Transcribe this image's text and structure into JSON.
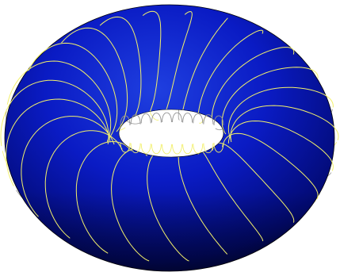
{
  "figure": {
    "subject": "torus",
    "colors": {
      "background": "#ffffff",
      "surface_light": "#1f3fe0",
      "surface_mid": "#0a1bc4",
      "surface_dark": "#020a72",
      "surface_shadow": "#000636",
      "field_line_front": "#f2f06a",
      "field_line_back": "#8f8f8f",
      "outline": "#000000"
    },
    "field_lines": {
      "count": 24,
      "kind": "poloidal helical coils"
    }
  }
}
